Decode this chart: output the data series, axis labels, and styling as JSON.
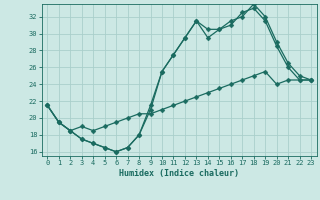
{
  "title": "",
  "xlabel": "Humidex (Indice chaleur)",
  "bg_color": "#cce8e4",
  "grid_color": "#aacfcb",
  "line_color": "#1a6b60",
  "xlim": [
    -0.5,
    23.5
  ],
  "ylim": [
    15.5,
    33.5
  ],
  "yticks": [
    16,
    18,
    20,
    22,
    24,
    26,
    28,
    30,
    32
  ],
  "xticks": [
    0,
    1,
    2,
    3,
    4,
    5,
    6,
    7,
    8,
    9,
    10,
    11,
    12,
    13,
    14,
    15,
    16,
    17,
    18,
    19,
    20,
    21,
    22,
    23
  ],
  "line1_x": [
    0,
    1,
    2,
    3,
    4,
    5,
    6,
    7,
    8,
    9,
    10,
    11,
    12,
    13,
    14,
    15,
    16,
    17,
    18,
    19,
    20,
    21,
    22,
    23
  ],
  "line1_y": [
    21.5,
    19.5,
    18.5,
    17.5,
    17.0,
    16.5,
    16.0,
    16.5,
    18.0,
    21.0,
    25.5,
    27.5,
    29.5,
    31.5,
    29.5,
    30.5,
    31.0,
    32.5,
    33.0,
    31.5,
    28.5,
    26.0,
    24.5,
    24.5
  ],
  "line2_x": [
    0,
    1,
    2,
    3,
    4,
    5,
    6,
    7,
    8,
    9,
    10,
    11,
    12,
    13,
    14,
    15,
    16,
    17,
    18,
    19,
    20,
    21,
    22,
    23
  ],
  "line2_y": [
    21.5,
    19.5,
    18.5,
    17.5,
    17.0,
    16.5,
    16.0,
    16.5,
    18.0,
    21.5,
    25.5,
    27.5,
    29.5,
    31.5,
    30.5,
    30.5,
    31.5,
    32.0,
    33.5,
    32.0,
    29.0,
    26.5,
    25.0,
    24.5
  ],
  "line3_x": [
    0,
    1,
    2,
    3,
    4,
    5,
    6,
    7,
    8,
    9,
    10,
    11,
    12,
    13,
    14,
    15,
    16,
    17,
    18,
    19,
    20,
    21,
    22,
    23
  ],
  "line3_y": [
    21.5,
    19.5,
    18.5,
    19.0,
    18.5,
    19.0,
    19.5,
    20.0,
    20.5,
    20.5,
    21.0,
    21.5,
    22.0,
    22.5,
    23.0,
    23.5,
    24.0,
    24.5,
    25.0,
    25.5,
    24.0,
    24.5,
    24.5,
    24.5
  ],
  "tick_fontsize": 5.0,
  "xlabel_fontsize": 6.0,
  "marker_size": 2.5,
  "line_width": 0.9
}
